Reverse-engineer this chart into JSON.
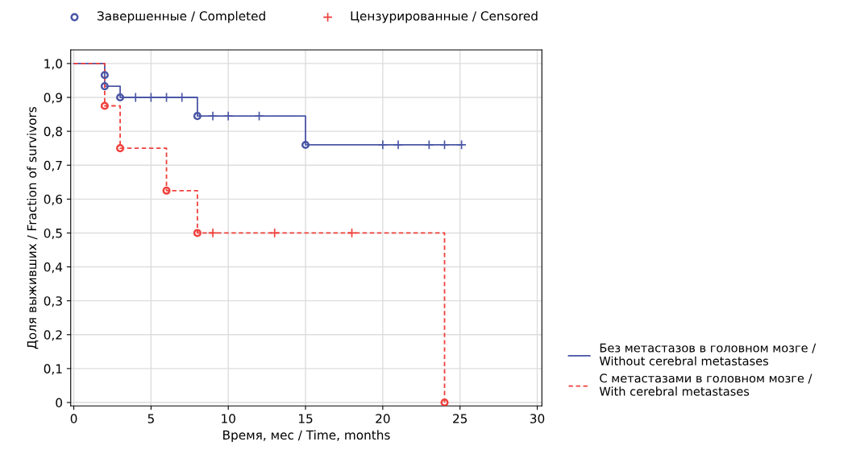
{
  "chart_data": {
    "type": "step",
    "xlabel": "Время, мес / Time, months",
    "ylabel": "Доля выживших / Fraction of survivors",
    "series": [
      {
        "name": "Без метастазов в головном мозге / Without cerebral metastases",
        "color": "#4a56a6",
        "line_style": "solid",
        "marker": "none",
        "x": [
          0,
          2,
          2,
          3,
          8,
          15,
          25.1
        ],
        "values": [
          1.0,
          0.966,
          0.933,
          0.9,
          0.845,
          0.76,
          0.76
        ]
      },
      {
        "name": "С метастазами в головном мозге / With cerebral metastases",
        "color": "#f0413c",
        "line_style": "dashed",
        "marker": "none",
        "x": [
          0,
          2,
          3,
          6,
          8,
          24
        ],
        "values": [
          1.0,
          0.875,
          0.75,
          0.625,
          0.5,
          0.0
        ]
      },
      {
        "name": "Завершенные / Completed",
        "type": "scatter",
        "marker": "circle",
        "color": "#4a56a6",
        "colors": [
          "#4a56a6",
          "#4a56a6",
          "#4a56a6",
          "#4a56a6",
          "#4a56a6",
          "#f0413c",
          "#f0413c",
          "#f0413c",
          "#f0413c",
          "#f0413c"
        ],
        "x": [
          2,
          2,
          3,
          8,
          15,
          2,
          3,
          6,
          8,
          24
        ],
        "values": [
          0.966,
          0.933,
          0.9,
          0.845,
          0.76,
          0.875,
          0.75,
          0.625,
          0.5,
          0.0
        ]
      },
      {
        "name": "Цензурированные / Censored",
        "type": "scatter",
        "marker": "cross",
        "color": "#f0413c",
        "colors": [
          "#f0413c",
          "#f0413c",
          "#f0413c",
          "#4a56a6",
          "#4a56a6",
          "#4a56a6",
          "#4a56a6",
          "#4a56a6",
          "#4a56a6",
          "#4a56a6",
          "#4a56a6",
          "#4a56a6",
          "#4a56a6",
          "#4a56a6",
          "#4a56a6"
        ],
        "x": [
          9,
          13,
          18,
          4,
          5,
          6,
          7,
          9,
          10,
          12,
          20,
          21,
          23,
          24,
          25.1
        ],
        "values": [
          0.5,
          0.5,
          0.5,
          0.9,
          0.9,
          0.9,
          0.9,
          0.845,
          0.845,
          0.845,
          0.76,
          0.76,
          0.76,
          0.76,
          0.76
        ]
      }
    ],
    "xlim": [
      -0.2,
      30.3
    ],
    "xticks": [
      0,
      5,
      10,
      15,
      20,
      25,
      30
    ],
    "ylim": [
      -0.01,
      1.04
    ],
    "yticks": [
      {
        "value": 0,
        "label": "0"
      },
      {
        "value": 0.1,
        "label": "0,1"
      },
      {
        "value": 0.2,
        "label": "0,2"
      },
      {
        "value": 0.3,
        "label": "0,3"
      },
      {
        "value": 0.4,
        "label": "0,4"
      },
      {
        "value": 0.5,
        "label": "0,5"
      },
      {
        "value": 0.6,
        "label": "0,6"
      },
      {
        "value": 0.7,
        "label": "0,7"
      },
      {
        "value": 0.8,
        "label": "0,8"
      },
      {
        "value": 0.9,
        "label": "0,9"
      },
      {
        "value": 1.0,
        "label": "1,0"
      }
    ],
    "grid": true,
    "legend": "right"
  }
}
